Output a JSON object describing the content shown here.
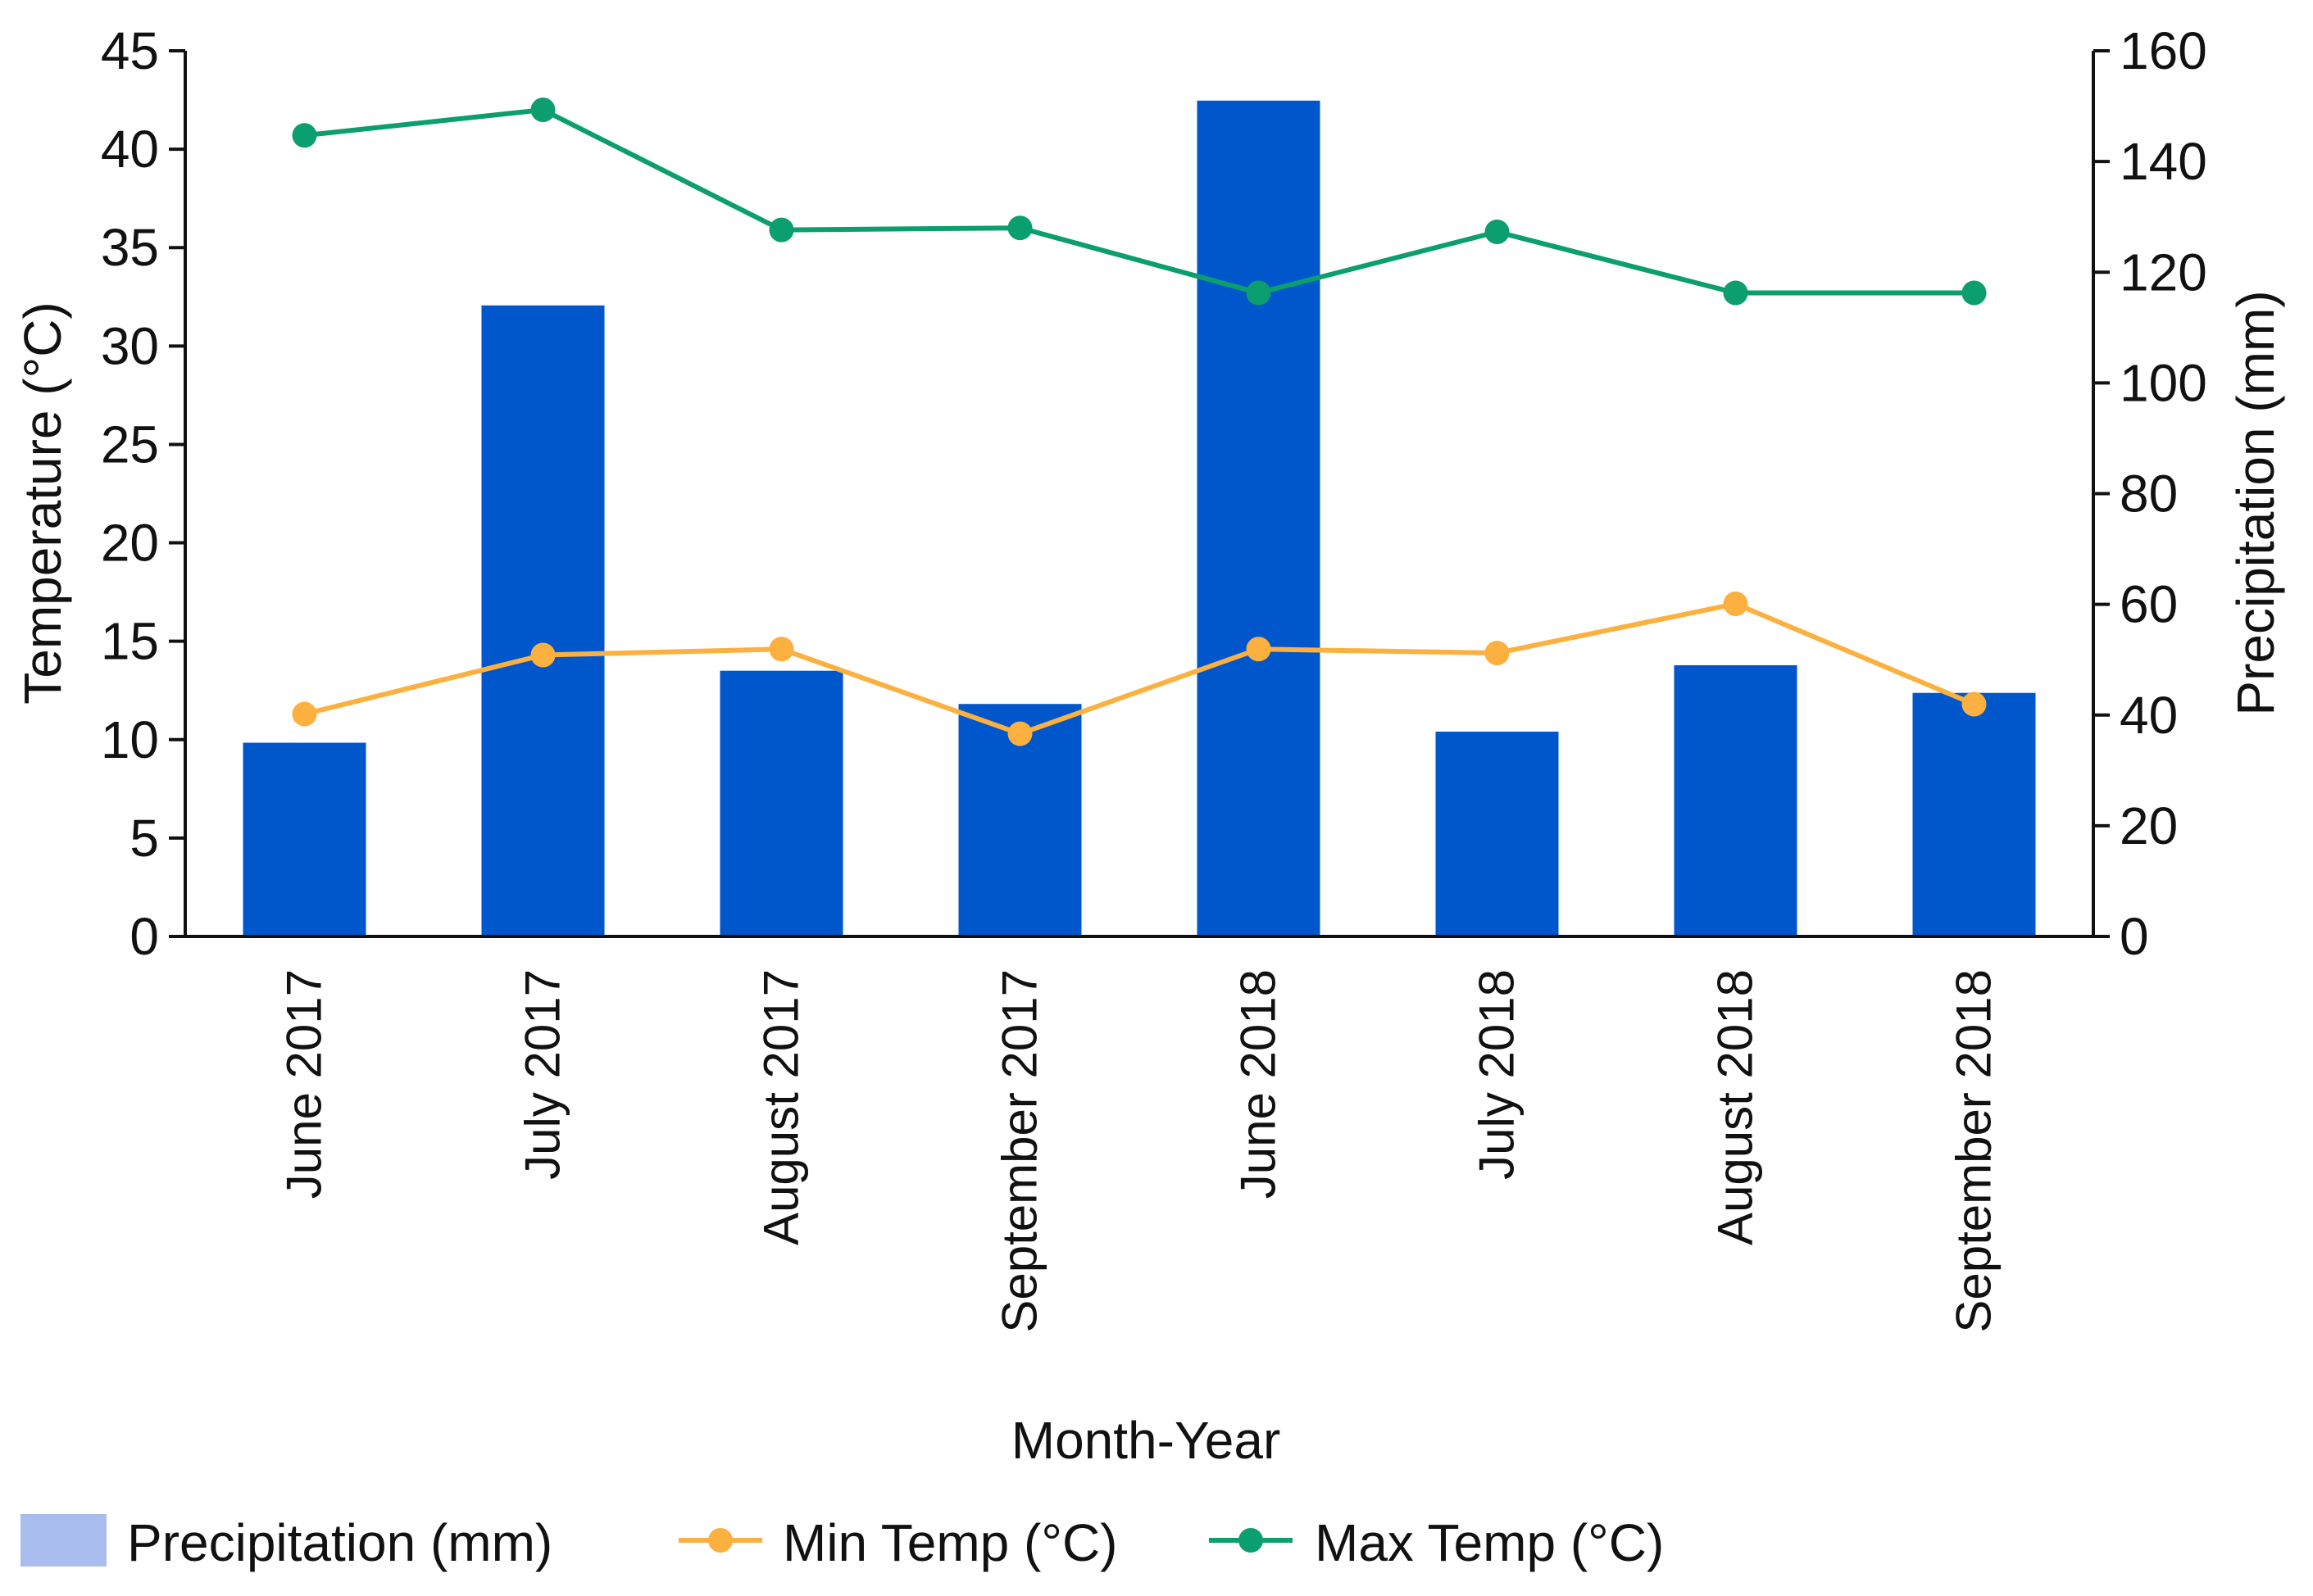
{
  "chart_data": {
    "type": "bar+line",
    "categories": [
      "June 2017",
      "July 2017",
      "August 2017",
      "September 2017",
      "June 2018",
      "July 2018",
      "August 2018",
      "September 2018"
    ],
    "xlabel": "Month-Year",
    "ylabel_left": "Temperature (°C)",
    "ylabel_right": "Precipitation (mm)",
    "ylim_left": [
      0,
      45
    ],
    "ylim_right": [
      0,
      160
    ],
    "yticks_left": [
      0,
      5,
      10,
      15,
      20,
      25,
      30,
      35,
      40,
      45
    ],
    "yticks_right": [
      0,
      20,
      40,
      60,
      80,
      100,
      120,
      140,
      160
    ],
    "grid": false,
    "legend_position": "bottom-left",
    "series": [
      {
        "name": "Precipitation (mm)",
        "type": "bar",
        "axis": "right",
        "color": "#0057CC",
        "legend_color": "#A9BDED",
        "values": [
          35,
          114,
          48,
          42,
          151,
          37,
          49,
          44
        ]
      },
      {
        "name": "Min Temp (°C)",
        "type": "line",
        "axis": "left",
        "color": "#FBB040",
        "values": [
          11.3,
          14.3,
          14.6,
          10.3,
          14.6,
          14.4,
          16.9,
          11.8
        ]
      },
      {
        "name": "Max Temp (°C)",
        "type": "line",
        "axis": "left",
        "color": "#0B9E6E",
        "values": [
          40.7,
          42.0,
          35.9,
          36.0,
          32.7,
          35.8,
          32.7,
          32.7
        ]
      }
    ]
  }
}
